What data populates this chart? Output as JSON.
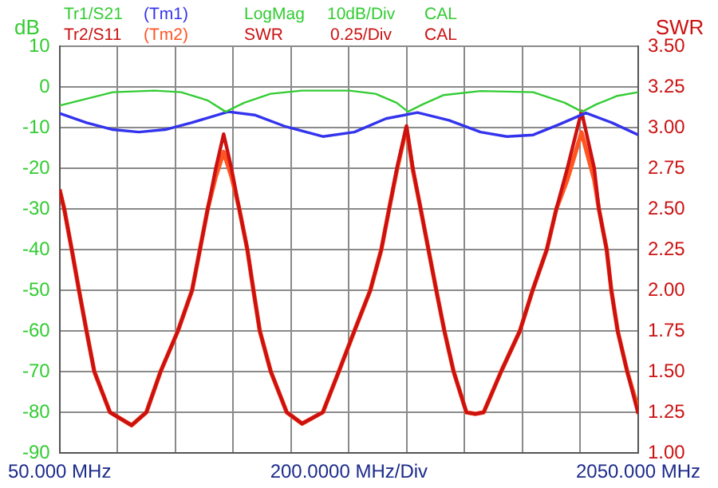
{
  "chart_data": {
    "type": "line",
    "ylabel": "dB",
    "y2label": "SWR",
    "xlabel": "200.0000 MHz/Div",
    "annotations": [
      "LogMag",
      "10dB/Div",
      "CAL",
      "SWR",
      "0.25/Div",
      "CAL"
    ],
    "xlim": [
      50,
      2050
    ],
    "xticks": [
      {
        "value": 50,
        "label": "50.000 MHz"
      },
      {
        "value": 250,
        "label": null
      },
      {
        "value": 450,
        "label": null
      },
      {
        "value": 650,
        "label": null
      },
      {
        "value": 850,
        "label": null
      },
      {
        "value": 1050,
        "label": null
      },
      {
        "value": 1250,
        "label": null
      },
      {
        "value": 1450,
        "label": null
      },
      {
        "value": 1650,
        "label": null
      },
      {
        "value": 1850,
        "label": null
      },
      {
        "value": 2050,
        "label": "2050.000 MHz"
      }
    ],
    "ylim": [
      -90,
      10
    ],
    "yticks": [
      -90,
      -80,
      -70,
      -60,
      -50,
      -40,
      -30,
      -20,
      -10,
      0,
      10
    ],
    "y2lim": [
      1,
      3.5
    ],
    "y2ticks": [
      {
        "value": 1,
        "label": "1.00"
      },
      {
        "value": 1.25,
        "label": "1.25"
      },
      {
        "value": 1.5,
        "label": "1.50"
      },
      {
        "value": 1.75,
        "label": "1.75"
      },
      {
        "value": 2,
        "label": "2.00"
      },
      {
        "value": 2.25,
        "label": "2.25"
      },
      {
        "value": 2.5,
        "label": "2.50"
      },
      {
        "value": 2.75,
        "label": "2.75"
      },
      {
        "value": 3,
        "label": "3.00"
      },
      {
        "value": 3.25,
        "label": "3.25"
      },
      {
        "value": 3.5,
        "label": "3.50"
      }
    ],
    "grid": true,
    "legend": "top",
    "marker": "none",
    "line_style": "solid",
    "series": [
      {
        "name": "Tr1/S21",
        "color": "#33cc33",
        "x": [
          50,
          234,
          379,
          470,
          561,
          624,
          688,
          779,
          888,
          1051,
          1142,
          1215,
          1254,
          1305,
          1378,
          1505,
          1687,
          1796,
          1856,
          1905,
          1978,
          2050
        ],
        "values": [
          -4.6,
          -1.3,
          -0.9,
          -1.3,
          -3.3,
          -6.1,
          -3.9,
          -1.7,
          -0.9,
          -0.9,
          -1.7,
          -3.9,
          -6.1,
          -4.3,
          -2.0,
          -1.0,
          -1.3,
          -3.9,
          -6.1,
          -4.3,
          -2.2,
          -1.3
        ]
      },
      {
        "name": "(Tm1)",
        "color": "#3333ee",
        "x": [
          50,
          143,
          234,
          324,
          415,
          506,
          633,
          724,
          833,
          960,
          1069,
          1178,
          1287,
          1396,
          1505,
          1596,
          1687,
          1778,
          1869,
          1959,
          2050
        ],
        "values": [
          -6.5,
          -8.8,
          -10.5,
          -11.1,
          -10.5,
          -8.8,
          -6.1,
          -6.9,
          -9.8,
          -12.2,
          -11.1,
          -7.8,
          -6.3,
          -8.2,
          -11.1,
          -12.2,
          -11.8,
          -9.2,
          -6.4,
          -8.8,
          -11.8
        ]
      },
      {
        "name": "Tr2/S11",
        "color": "#cc1111",
        "axis": "y2",
        "x": [
          50,
          66,
          92,
          117,
          143,
          170,
          224,
          299,
          350,
          399,
          459,
          508,
          535,
          562,
          590,
          617,
          644,
          671,
          699,
          720,
          742,
          780,
          835,
          888,
          960,
          1015,
          1069,
          1124,
          1162,
          1189,
          1216,
          1249,
          1271,
          1298,
          1325,
          1352,
          1380,
          1412,
          1456,
          1487,
          1516,
          1576,
          1641,
          1685,
          1734,
          1767,
          1805,
          1854,
          1898,
          1914,
          1941,
          1957,
          1979,
          2012,
          2050
        ],
        "values": [
          2.62,
          2.5,
          2.25,
          2.0,
          1.75,
          1.5,
          1.25,
          1.17,
          1.25,
          1.5,
          1.75,
          2.0,
          2.25,
          2.5,
          2.75,
          2.96,
          2.75,
          2.5,
          2.25,
          2.0,
          1.75,
          1.5,
          1.25,
          1.18,
          1.25,
          1.5,
          1.75,
          2.0,
          2.25,
          2.5,
          2.75,
          3.01,
          2.75,
          2.5,
          2.25,
          2.0,
          1.75,
          1.5,
          1.25,
          1.24,
          1.25,
          1.5,
          1.75,
          2.0,
          2.25,
          2.5,
          2.75,
          3.1,
          2.75,
          2.5,
          2.25,
          2.0,
          1.75,
          1.5,
          1.24
        ]
      },
      {
        "name": "(Tm2)",
        "color": "#ff5522",
        "axis": "y2",
        "x": [
          50,
          66,
          92,
          117,
          143,
          170,
          224,
          299,
          350,
          399,
          459,
          508,
          535,
          562,
          590,
          617,
          644,
          671,
          699,
          720,
          742,
          780,
          835,
          888,
          960,
          1015,
          1069,
          1124,
          1162,
          1189,
          1216,
          1249,
          1271,
          1298,
          1325,
          1352,
          1380,
          1412,
          1456,
          1487,
          1516,
          1576,
          1641,
          1685,
          1734,
          1767,
          1805,
          1854,
          1898,
          1914,
          1941,
          1957,
          1979,
          2012,
          2050
        ],
        "values": [
          2.62,
          2.5,
          2.25,
          2.0,
          1.75,
          1.5,
          1.25,
          1.17,
          1.25,
          1.5,
          1.75,
          2.0,
          2.25,
          2.5,
          2.7,
          2.85,
          2.7,
          2.5,
          2.25,
          2.0,
          1.75,
          1.5,
          1.25,
          1.18,
          1.25,
          1.5,
          1.75,
          2.0,
          2.25,
          2.5,
          2.74,
          3.0,
          2.74,
          2.5,
          2.25,
          2.0,
          1.75,
          1.5,
          1.25,
          1.24,
          1.25,
          1.5,
          1.75,
          2.0,
          2.25,
          2.5,
          2.68,
          2.97,
          2.68,
          2.5,
          2.25,
          2.0,
          1.75,
          1.5,
          1.27
        ]
      }
    ]
  }
}
